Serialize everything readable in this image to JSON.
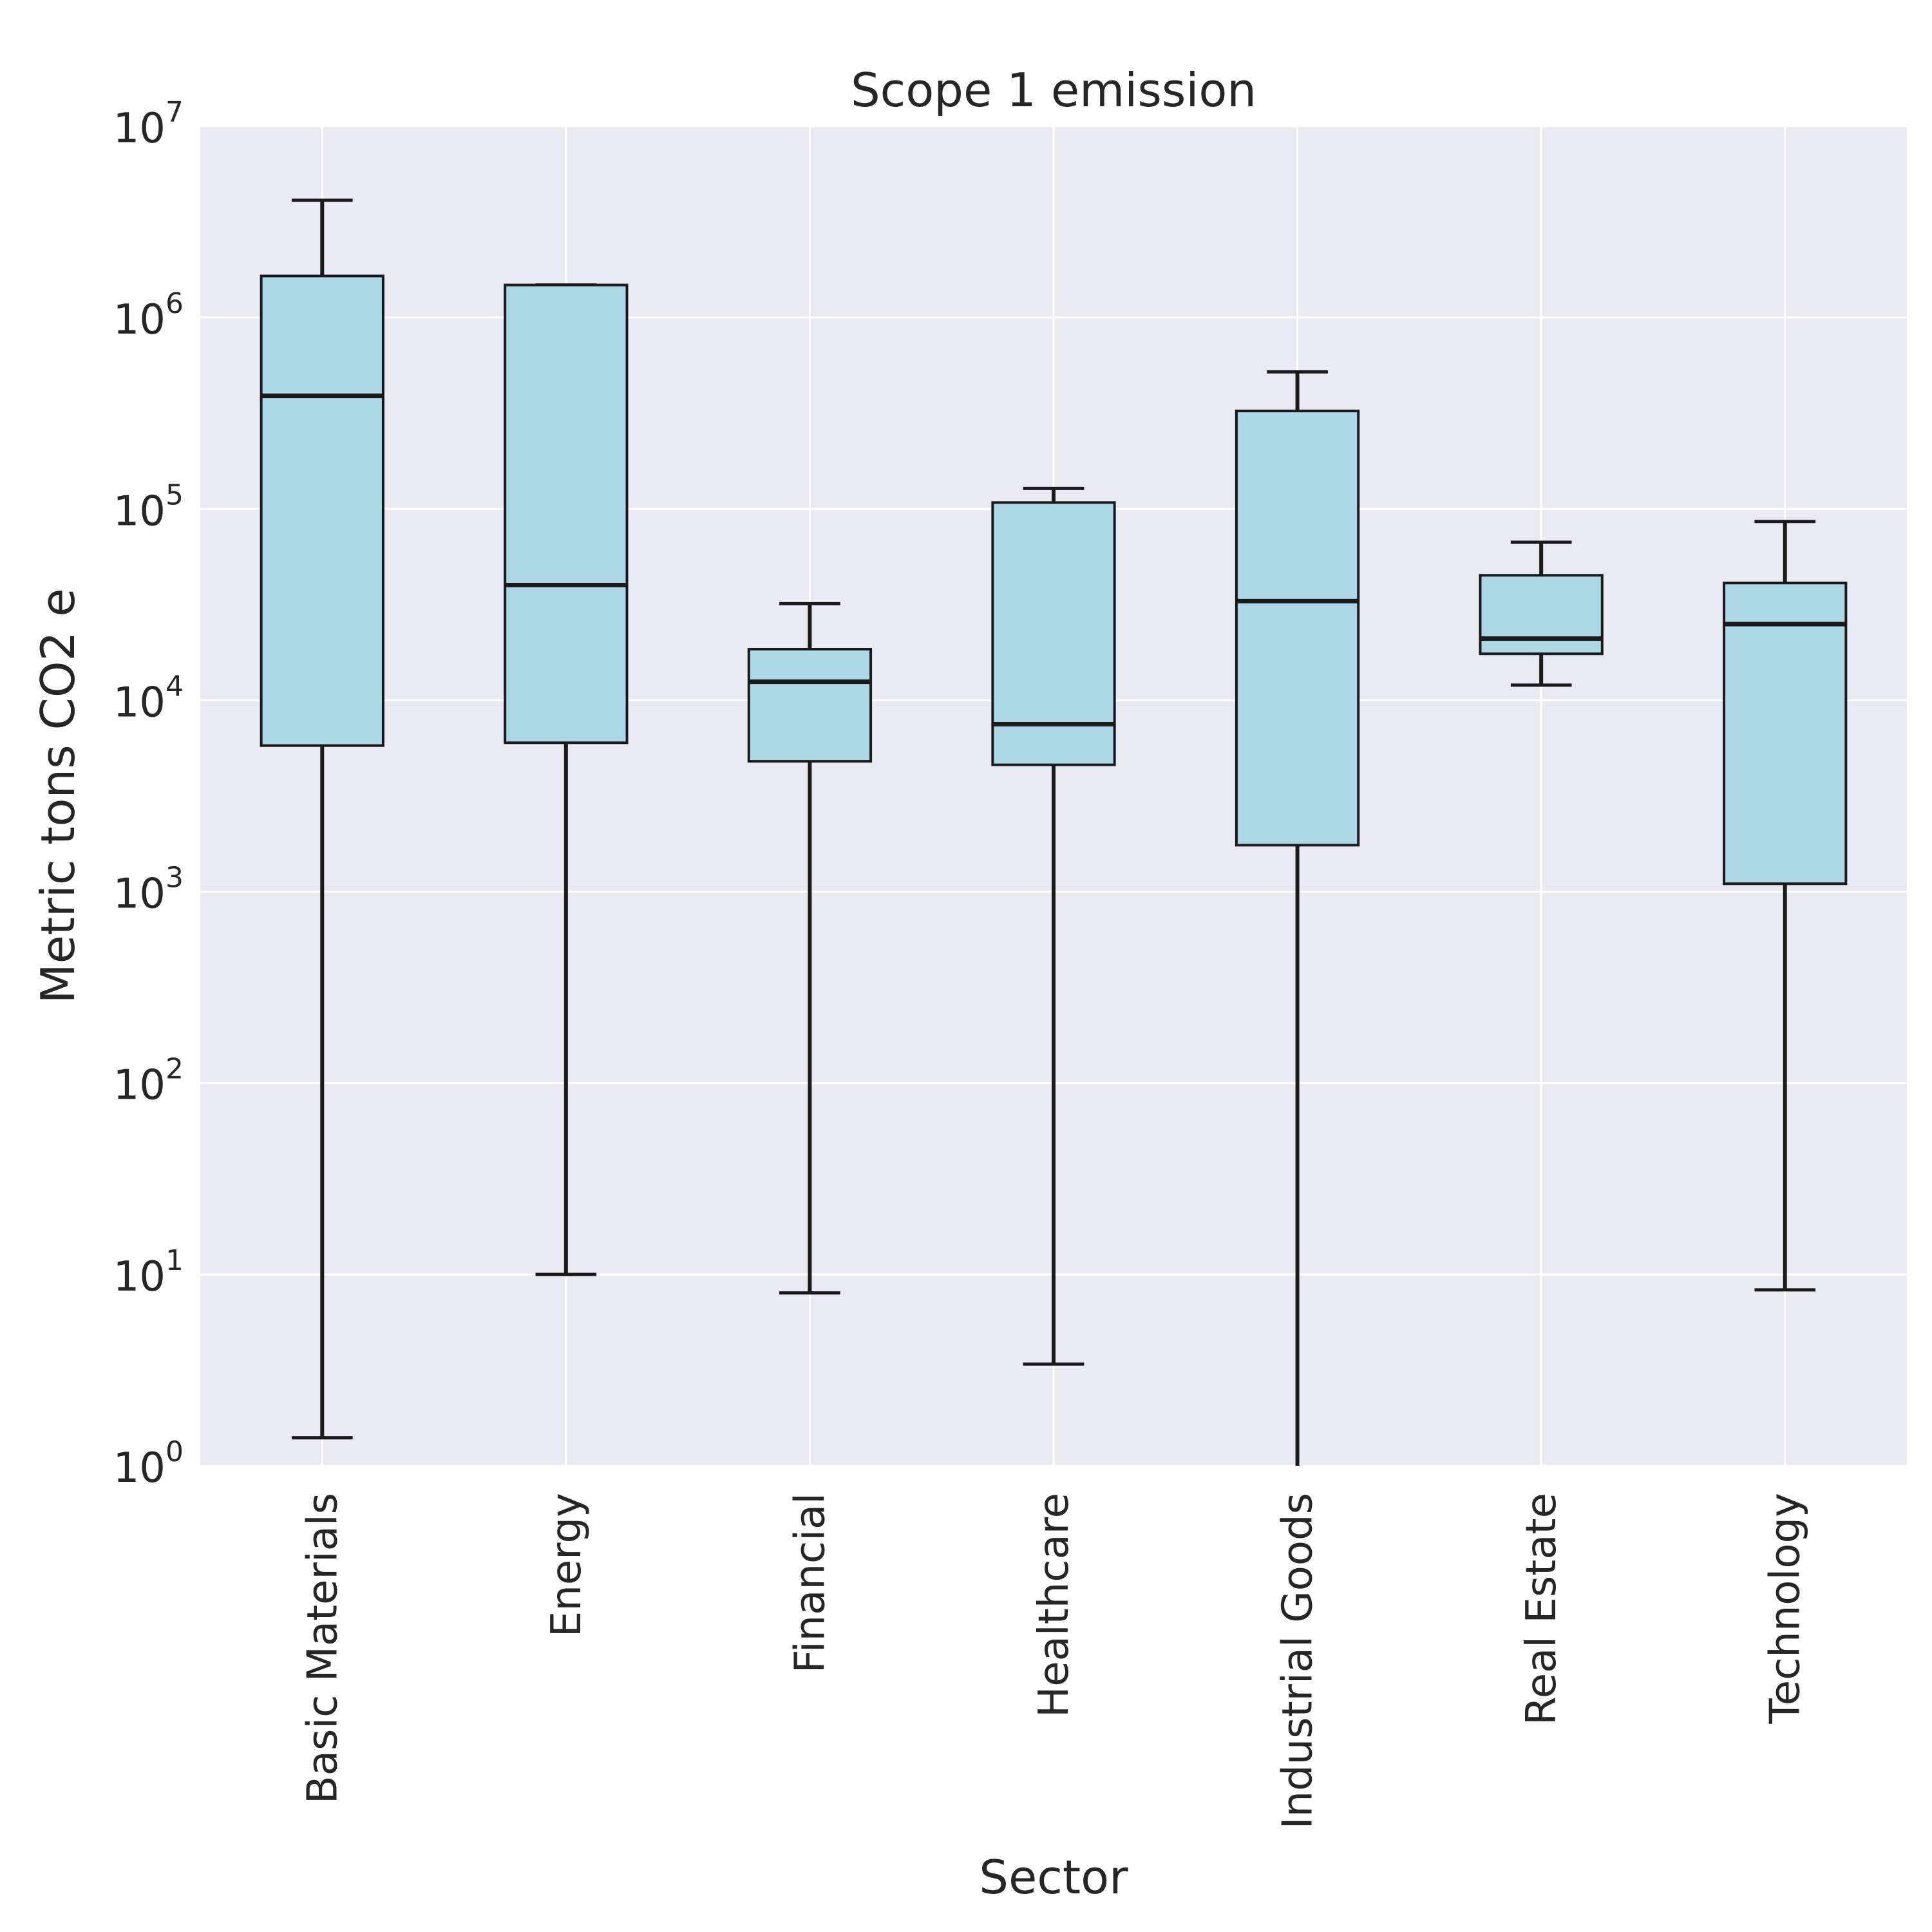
{
  "chart_data": {
    "type": "box",
    "title": "Scope 1 emission",
    "xlabel": "Sector",
    "ylabel": "Metric tons CO2 e",
    "yscale": "log",
    "ylim": [
      1,
      10000000
    ],
    "yticks": [
      {
        "base": "10",
        "exp": "0",
        "value": 1
      },
      {
        "base": "10",
        "exp": "1",
        "value": 10
      },
      {
        "base": "10",
        "exp": "2",
        "value": 100
      },
      {
        "base": "10",
        "exp": "3",
        "value": 1000
      },
      {
        "base": "10",
        "exp": "4",
        "value": 10000
      },
      {
        "base": "10",
        "exp": "5",
        "value": 100000
      },
      {
        "base": "10",
        "exp": "6",
        "value": 1000000
      },
      {
        "base": "10",
        "exp": "7",
        "value": 10000000
      }
    ],
    "grid": true,
    "background_color": "#eaeaf2",
    "box_color": "#add8e6",
    "categories": [
      "Basic Materials",
      "Energy",
      "Financial",
      "Healthcare",
      "Industrial Goods",
      "Real Estate",
      "Technology"
    ],
    "boxes": [
      {
        "category": "Basic Materials",
        "whisker_low": 1.4,
        "q1": 5800,
        "median": 390000,
        "q3": 1650000,
        "whisker_high": 4100000
      },
      {
        "category": "Energy",
        "whisker_low": 10,
        "q1": 6000,
        "median": 40000,
        "q3": 1480000,
        "whisker_high": 1480000
      },
      {
        "category": "Financial",
        "whisker_low": 8,
        "q1": 4800,
        "median": 12500,
        "q3": 18500,
        "whisker_high": 32000
      },
      {
        "category": "Healthcare",
        "whisker_low": 3.4,
        "q1": 4600,
        "median": 7500,
        "q3": 108000,
        "whisker_high": 128000
      },
      {
        "category": "Industrial Goods",
        "whisker_low": 1,
        "q1": 1750,
        "median": 33000,
        "q3": 325000,
        "whisker_high": 520000
      },
      {
        "category": "Real Estate",
        "whisker_low": 12000,
        "q1": 17500,
        "median": 21000,
        "q3": 45000,
        "whisker_high": 67000
      },
      {
        "category": "Technology",
        "whisker_low": 8.3,
        "q1": 1100,
        "median": 25000,
        "q3": 41000,
        "whisker_high": 86000
      }
    ]
  }
}
